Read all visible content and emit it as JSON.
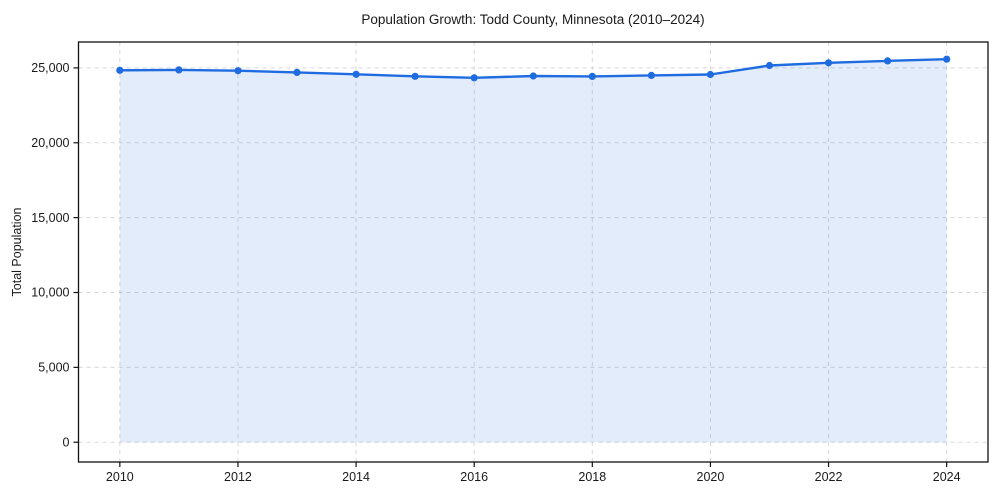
{
  "chart_data": {
    "type": "line",
    "title": "Population Growth: Todd County, Minnesota (2010–2024)",
    "xlabel": "",
    "ylabel": "Total Population",
    "x": [
      2010,
      2011,
      2012,
      2013,
      2014,
      2015,
      2016,
      2017,
      2018,
      2019,
      2020,
      2021,
      2022,
      2023,
      2024
    ],
    "series": [
      {
        "name": "Total Population",
        "values": [
          24840,
          24870,
          24810,
          24700,
          24570,
          24440,
          24340,
          24460,
          24430,
          24500,
          24560,
          25160,
          25340,
          25470,
          25580
        ]
      }
    ],
    "x_ticks": [
      2010,
      2012,
      2014,
      2016,
      2018,
      2020,
      2022,
      2024
    ],
    "y_ticks": [
      0,
      5000,
      10000,
      15000,
      20000,
      25000
    ],
    "xlim": [
      2009.3,
      2024.7
    ],
    "ylim": [
      -1320,
      26730
    ],
    "grid": true,
    "grid_style": "dashed",
    "legend": false,
    "area_fill": true,
    "marker": "circle",
    "colors": {
      "line": "#1f6be0",
      "marker": "#1f6be0",
      "fill": "rgba(31,107,224,0.13)",
      "grid": "#d7d7d7",
      "spine": "#111111",
      "text": "#1a1a1a",
      "background": "#ffffff"
    }
  }
}
